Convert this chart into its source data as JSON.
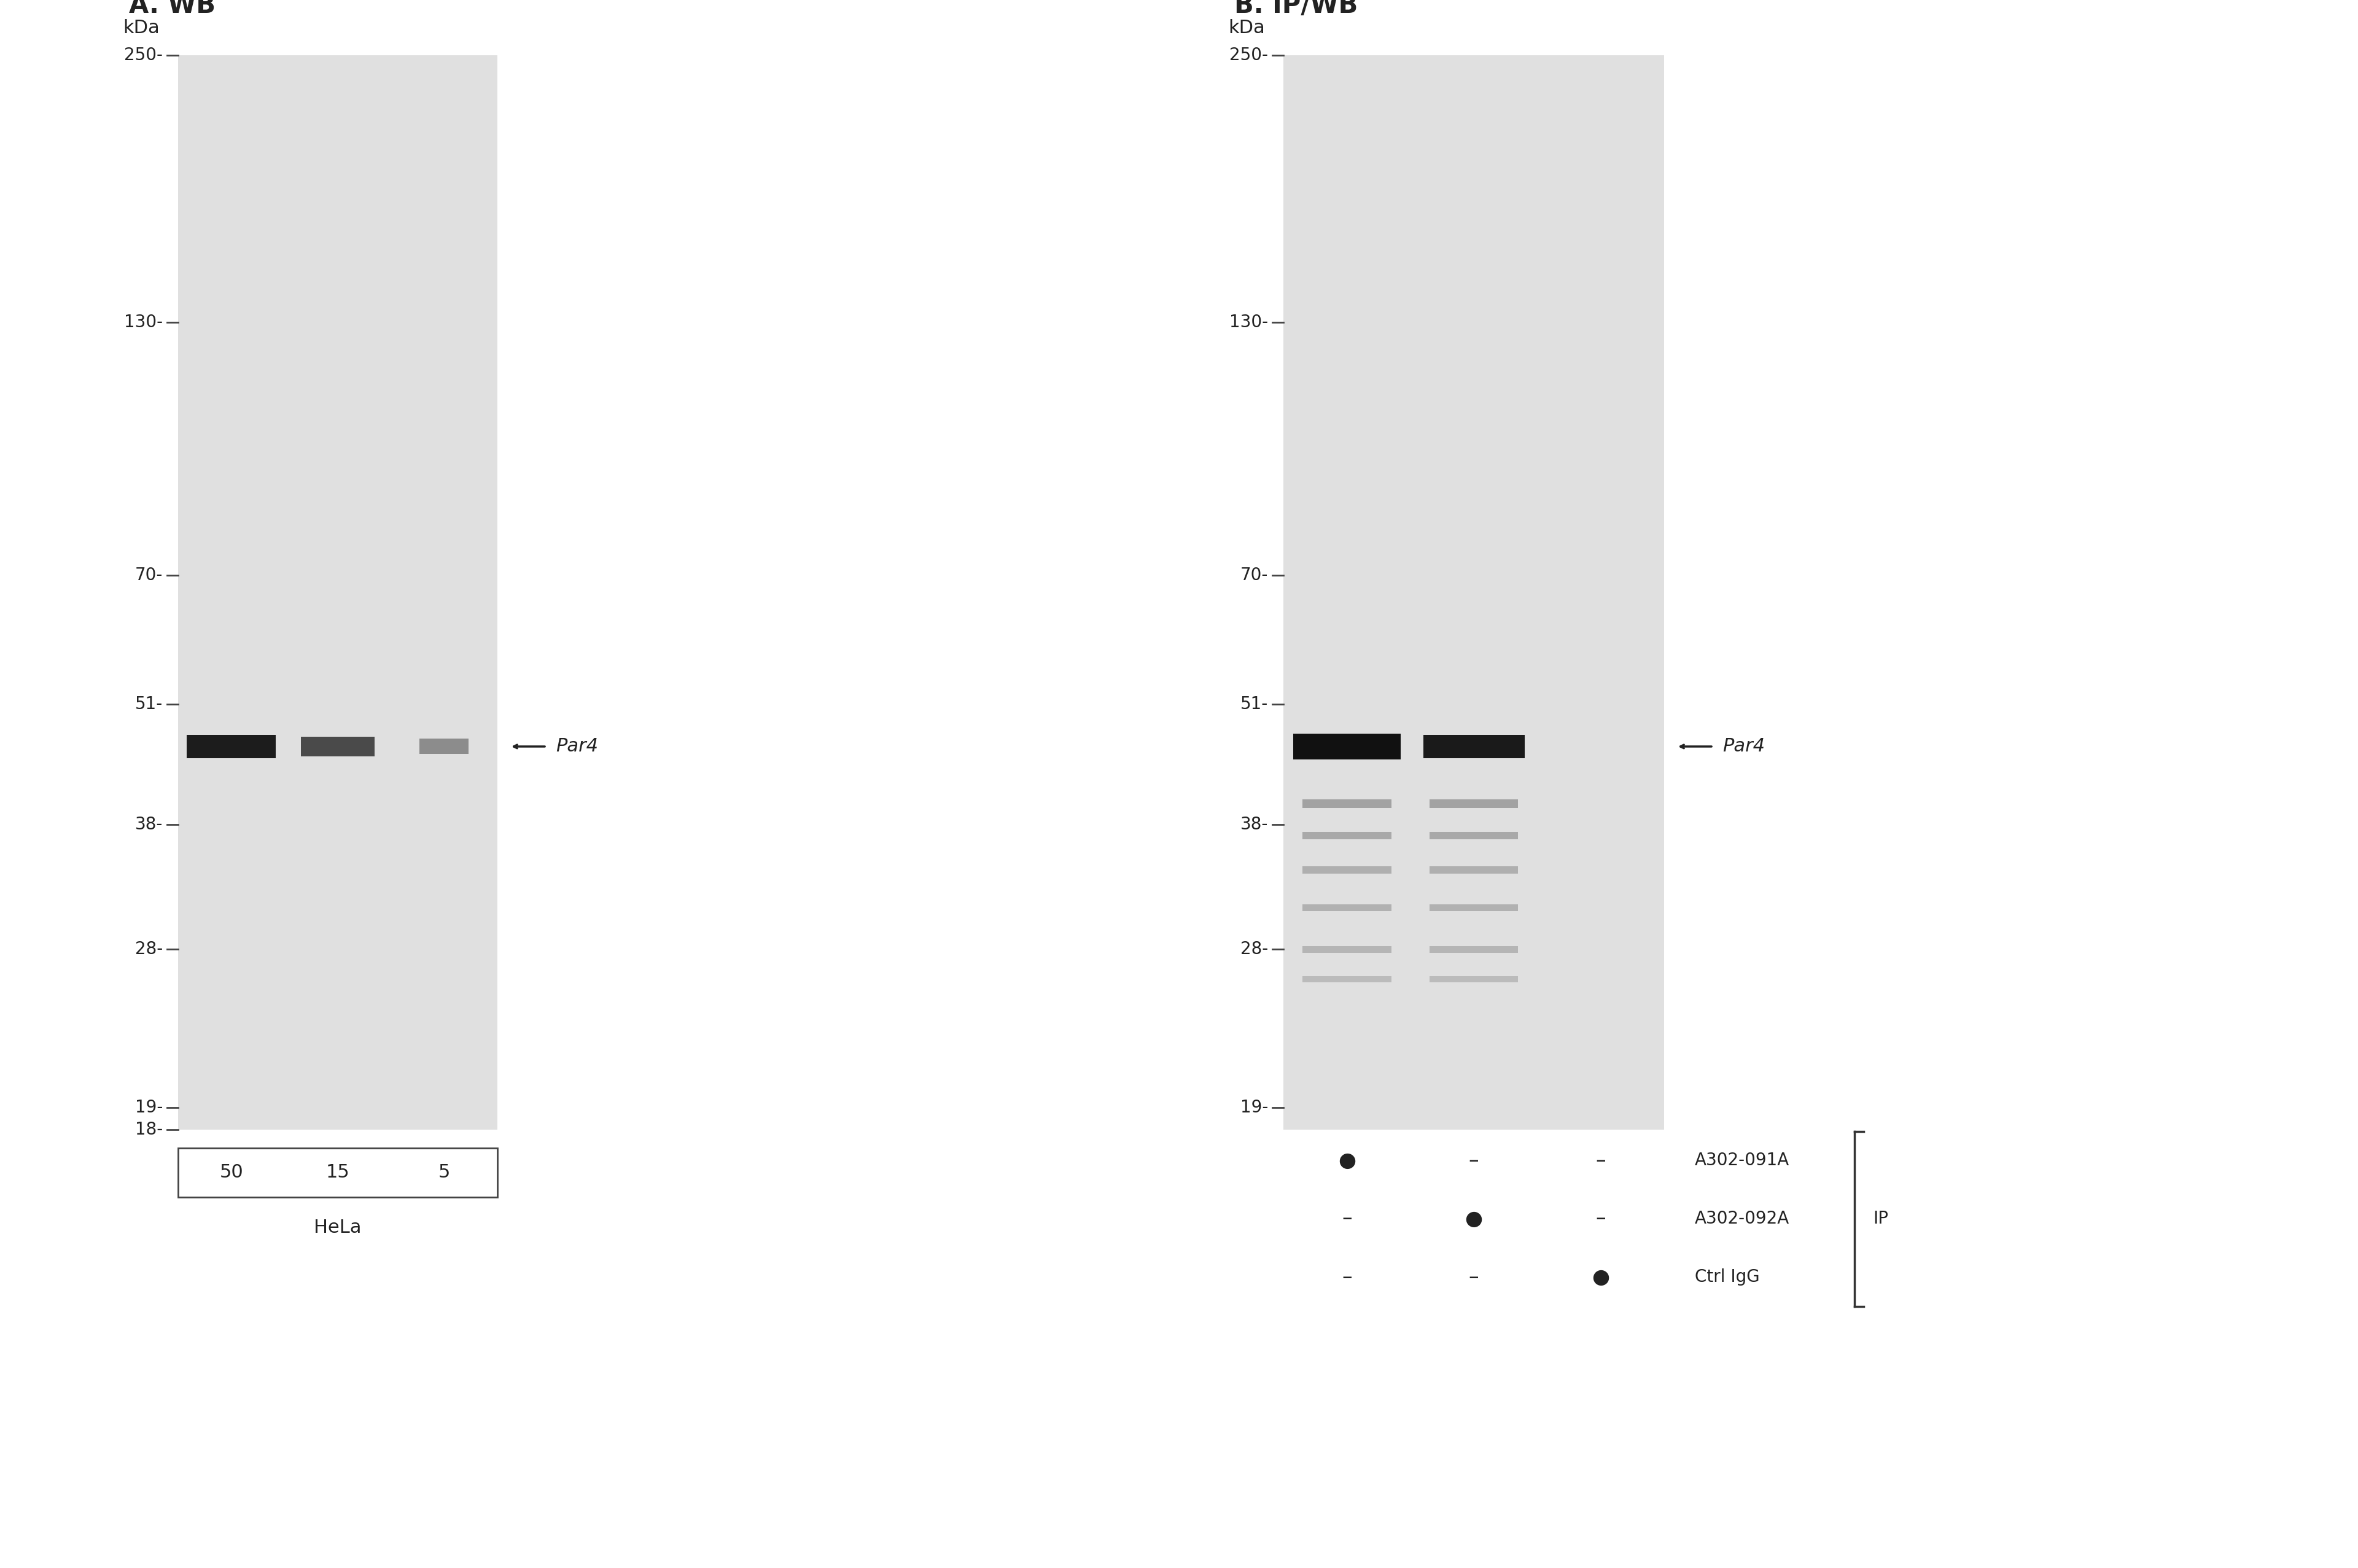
{
  "white_bg": "#ffffff",
  "panel_A_title": "A. WB",
  "panel_B_title": "B. IP/WB",
  "kda_label": "kDa",
  "mw_markers_A": [
    250,
    130,
    70,
    51,
    38,
    28,
    19,
    18
  ],
  "mw_markers_B": [
    250,
    130,
    70,
    51,
    38,
    28,
    19
  ],
  "hela_label": "HeLa",
  "lane_labels_A": [
    "50",
    "15",
    "5"
  ],
  "par4_label": "Par4",
  "arrow_color": "#222222",
  "text_color": "#222222",
  "blot_bg": "#e0e0e0",
  "ip_labels": [
    "A302-091A",
    "A302-092A",
    "Ctrl IgG"
  ],
  "ip_bracket_label": "IP",
  "dot_filled": "●",
  "dot_small": "•",
  "dash": "–",
  "mw_log_min": 18,
  "mw_log_max": 250,
  "par4_mw": 46,
  "title_fontsize": 30,
  "label_fontsize": 22,
  "tick_fontsize": 20,
  "annotation_fontsize": 22
}
